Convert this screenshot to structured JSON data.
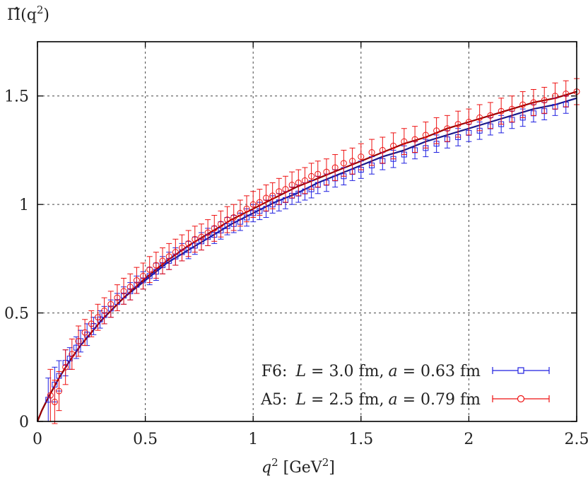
{
  "chart_data": {
    "type": "scatter",
    "title": "",
    "ylabel": {
      "base": "Π̂(q",
      "sup": "2",
      "tail": ")"
    },
    "xlabel": {
      "q": "q",
      "sup1": "2",
      "mid": " [GeV",
      "sup2": "2",
      "tail": "]"
    },
    "xlim": [
      0,
      2.5
    ],
    "ylim": [
      0,
      1.75
    ],
    "xticks": [
      {
        "v": 0,
        "label": "0"
      },
      {
        "v": 0.5,
        "label": "0.5"
      },
      {
        "v": 1,
        "label": "1"
      },
      {
        "v": 1.5,
        "label": "1.5"
      },
      {
        "v": 2,
        "label": "2"
      },
      {
        "v": 2.5,
        "label": "2.5"
      }
    ],
    "yticks": [
      {
        "v": 0,
        "label": "0"
      },
      {
        "v": 0.5,
        "label": "0.5"
      },
      {
        "v": 1,
        "label": "1"
      },
      {
        "v": 1.5,
        "label": "1.5"
      }
    ],
    "grid": true,
    "legend_position": "bottom-right",
    "series": [
      {
        "legend_prefix": "F6:",
        "legend_L_label": "L",
        "legend_L": " = 3.0 fm,",
        "legend_a_label": "a",
        "legend_a": " = 0.63 fm",
        "color": "#1f1fe0",
        "fit_color": "#1a1a8c",
        "marker": "square",
        "x": [
          0.05,
          0.08,
          0.1,
          0.13,
          0.15,
          0.18,
          0.2,
          0.23,
          0.26,
          0.29,
          0.31,
          0.34,
          0.37,
          0.4,
          0.43,
          0.46,
          0.49,
          0.52,
          0.55,
          0.58,
          0.61,
          0.64,
          0.67,
          0.7,
          0.73,
          0.76,
          0.79,
          0.82,
          0.85,
          0.88,
          0.91,
          0.94,
          0.97,
          1.0,
          1.03,
          1.06,
          1.09,
          1.12,
          1.15,
          1.18,
          1.21,
          1.24,
          1.27,
          1.3,
          1.34,
          1.38,
          1.42,
          1.46,
          1.5,
          1.55,
          1.6,
          1.65,
          1.7,
          1.75,
          1.8,
          1.85,
          1.9,
          1.95,
          2.0,
          2.05,
          2.1,
          2.15,
          2.2,
          2.25,
          2.3,
          2.35,
          2.4,
          2.45
        ],
        "y": [
          0.1,
          0.17,
          0.21,
          0.27,
          0.29,
          0.34,
          0.37,
          0.4,
          0.44,
          0.47,
          0.49,
          0.52,
          0.55,
          0.58,
          0.6,
          0.63,
          0.65,
          0.67,
          0.69,
          0.72,
          0.74,
          0.76,
          0.78,
          0.79,
          0.81,
          0.83,
          0.85,
          0.86,
          0.88,
          0.9,
          0.91,
          0.92,
          0.94,
          0.96,
          0.97,
          0.98,
          1.0,
          1.01,
          1.02,
          1.04,
          1.05,
          1.06,
          1.07,
          1.09,
          1.1,
          1.12,
          1.13,
          1.15,
          1.16,
          1.18,
          1.2,
          1.21,
          1.23,
          1.25,
          1.26,
          1.28,
          1.3,
          1.31,
          1.33,
          1.34,
          1.36,
          1.37,
          1.39,
          1.4,
          1.42,
          1.43,
          1.45,
          1.46
        ],
        "err": [
          0.1,
          0.08,
          0.07,
          0.06,
          0.05,
          0.05,
          0.05,
          0.05,
          0.04,
          0.04,
          0.04,
          0.04,
          0.04,
          0.04,
          0.04,
          0.04,
          0.04,
          0.04,
          0.04,
          0.04,
          0.04,
          0.04,
          0.04,
          0.04,
          0.04,
          0.04,
          0.04,
          0.04,
          0.04,
          0.04,
          0.04,
          0.04,
          0.04,
          0.04,
          0.04,
          0.04,
          0.04,
          0.04,
          0.04,
          0.04,
          0.04,
          0.04,
          0.04,
          0.04,
          0.04,
          0.04,
          0.04,
          0.04,
          0.04,
          0.04,
          0.04,
          0.04,
          0.04,
          0.04,
          0.04,
          0.04,
          0.04,
          0.04,
          0.04,
          0.04,
          0.04,
          0.04,
          0.04,
          0.04,
          0.04,
          0.04,
          0.04,
          0.04
        ],
        "fit": {
          "x": [
            0,
            0.02,
            0.05,
            0.1,
            0.15,
            0.2,
            0.3,
            0.4,
            0.5,
            0.6,
            0.7,
            0.8,
            0.9,
            1.0,
            1.1,
            1.2,
            1.3,
            1.4,
            1.5,
            1.6,
            1.7,
            1.8,
            1.9,
            2.0,
            2.1,
            2.2,
            2.3,
            2.4,
            2.5
          ],
          "y": [
            0,
            0.05,
            0.11,
            0.2,
            0.28,
            0.35,
            0.47,
            0.57,
            0.65,
            0.73,
            0.79,
            0.85,
            0.91,
            0.96,
            1.01,
            1.05,
            1.1,
            1.14,
            1.18,
            1.22,
            1.25,
            1.29,
            1.32,
            1.35,
            1.38,
            1.41,
            1.44,
            1.46,
            1.49
          ]
        }
      },
      {
        "legend_prefix": "A5:",
        "legend_L_label": "L",
        "legend_L": " = 2.5 fm,",
        "legend_a_label": "a",
        "legend_a": " = 0.79 fm",
        "color": "#ee1111",
        "fit_color": "#990000",
        "marker": "circle",
        "x": [
          0.06,
          0.08,
          0.1,
          0.13,
          0.16,
          0.19,
          0.22,
          0.25,
          0.28,
          0.31,
          0.34,
          0.37,
          0.4,
          0.43,
          0.46,
          0.49,
          0.52,
          0.55,
          0.58,
          0.61,
          0.64,
          0.67,
          0.7,
          0.73,
          0.76,
          0.79,
          0.82,
          0.85,
          0.88,
          0.91,
          0.94,
          0.97,
          1.0,
          1.03,
          1.06,
          1.09,
          1.12,
          1.15,
          1.18,
          1.21,
          1.24,
          1.27,
          1.3,
          1.34,
          1.38,
          1.42,
          1.46,
          1.5,
          1.55,
          1.6,
          1.65,
          1.7,
          1.75,
          1.8,
          1.85,
          1.9,
          1.95,
          2.0,
          2.05,
          2.1,
          2.15,
          2.2,
          2.25,
          2.3,
          2.35,
          2.4,
          2.45,
          2.5
        ],
        "y": [
          0.12,
          0.09,
          0.14,
          0.25,
          0.31,
          0.37,
          0.41,
          0.45,
          0.48,
          0.51,
          0.54,
          0.57,
          0.6,
          0.62,
          0.65,
          0.67,
          0.7,
          0.72,
          0.74,
          0.76,
          0.78,
          0.8,
          0.82,
          0.84,
          0.85,
          0.87,
          0.89,
          0.91,
          0.93,
          0.94,
          0.96,
          0.98,
          1.0,
          1.01,
          1.03,
          1.04,
          1.06,
          1.07,
          1.09,
          1.1,
          1.11,
          1.13,
          1.14,
          1.15,
          1.17,
          1.19,
          1.2,
          1.22,
          1.24,
          1.25,
          1.27,
          1.29,
          1.3,
          1.32,
          1.34,
          1.35,
          1.37,
          1.38,
          1.4,
          1.41,
          1.43,
          1.44,
          1.46,
          1.47,
          1.48,
          1.5,
          1.51,
          1.52
        ],
        "err": [
          0.12,
          0.1,
          0.09,
          0.08,
          0.07,
          0.07,
          0.06,
          0.06,
          0.06,
          0.06,
          0.06,
          0.06,
          0.06,
          0.06,
          0.06,
          0.06,
          0.06,
          0.06,
          0.06,
          0.06,
          0.06,
          0.06,
          0.06,
          0.06,
          0.06,
          0.06,
          0.06,
          0.06,
          0.06,
          0.06,
          0.06,
          0.06,
          0.06,
          0.06,
          0.06,
          0.06,
          0.06,
          0.06,
          0.06,
          0.06,
          0.06,
          0.06,
          0.06,
          0.06,
          0.06,
          0.06,
          0.06,
          0.06,
          0.06,
          0.06,
          0.06,
          0.06,
          0.06,
          0.06,
          0.06,
          0.06,
          0.06,
          0.06,
          0.06,
          0.06,
          0.06,
          0.06,
          0.06,
          0.06,
          0.06,
          0.06,
          0.06,
          0.06
        ],
        "fit": {
          "x": [
            0,
            0.02,
            0.05,
            0.1,
            0.15,
            0.2,
            0.3,
            0.4,
            0.5,
            0.6,
            0.7,
            0.8,
            0.9,
            1.0,
            1.1,
            1.2,
            1.3,
            1.4,
            1.5,
            1.6,
            1.7,
            1.8,
            1.9,
            2.0,
            2.1,
            2.2,
            2.3,
            2.4,
            2.5
          ],
          "y": [
            0,
            0.05,
            0.11,
            0.2,
            0.28,
            0.35,
            0.47,
            0.57,
            0.66,
            0.74,
            0.81,
            0.87,
            0.93,
            0.98,
            1.03,
            1.08,
            1.12,
            1.16,
            1.2,
            1.24,
            1.28,
            1.31,
            1.35,
            1.38,
            1.41,
            1.44,
            1.47,
            1.49,
            1.52
          ]
        }
      }
    ]
  }
}
